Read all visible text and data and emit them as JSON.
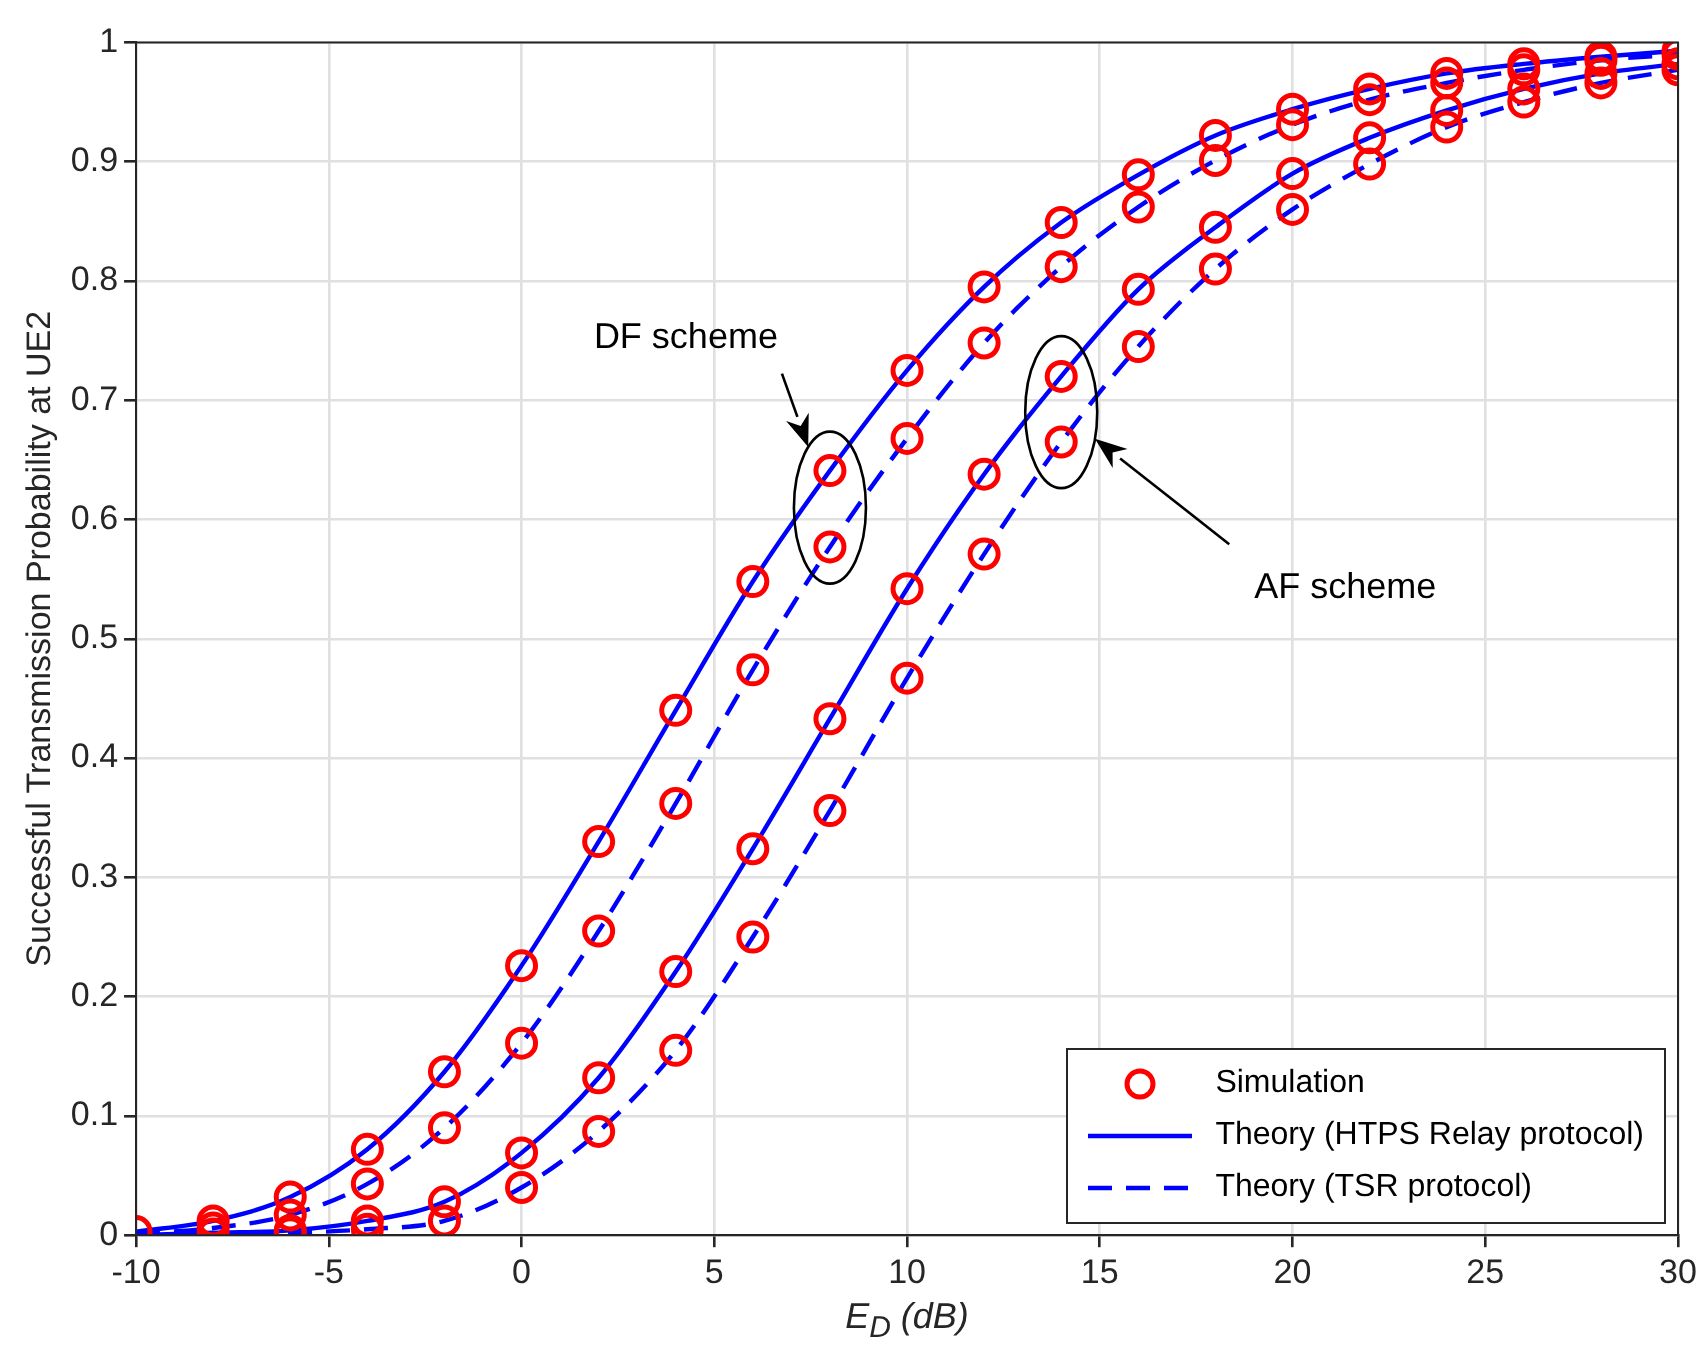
{
  "chart_data": {
    "type": "line",
    "xlabel": "E$_{D}$ (dB)",
    "ylabel": "Successful Transmission Probability at UE2",
    "xlim": [
      -10,
      30
    ],
    "xticks": [
      -10,
      -5,
      0,
      5,
      10,
      15,
      20,
      25,
      30
    ],
    "ylim": [
      0,
      1
    ],
    "yticks": [
      0,
      0.1,
      0.2,
      0.3,
      0.4,
      0.5,
      0.6,
      0.7,
      0.8,
      0.9,
      1
    ],
    "grid": true,
    "legend": "bottom right",
    "annotations": [
      "DF scheme",
      "AF scheme"
    ],
    "series": [
      {
        "name": "Simulation",
        "type": "scatter",
        "color": "#ff0000",
        "marker": "circle",
        "x": [
          -10,
          -8,
          -6,
          -4,
          -2,
          0,
          2,
          4,
          6,
          8,
          10,
          12,
          14,
          16,
          18,
          20,
          22,
          24,
          26,
          28,
          30,
          -8,
          -6,
          -4,
          -2,
          0,
          2,
          4,
          6,
          8,
          10,
          12,
          14,
          16,
          18,
          20,
          22,
          24,
          26,
          28,
          30,
          -6,
          -4,
          -2,
          0,
          2,
          4,
          6,
          8,
          10,
          12,
          14,
          16,
          18,
          20,
          22,
          24,
          26,
          28,
          30,
          -8,
          -6,
          -4,
          -2,
          0,
          2,
          4,
          6,
          8,
          10,
          12,
          14,
          16,
          18,
          20,
          22,
          24,
          26,
          28,
          30
        ],
        "values": [
          0.003,
          0.012,
          0.032,
          0.072,
          0.137,
          0.226,
          0.33,
          0.44,
          0.548,
          0.641,
          0.725,
          0.795,
          0.849,
          0.889,
          0.922,
          0.944,
          0.961,
          0.974,
          0.982,
          0.988,
          0.993,
          0.006,
          0.017,
          0.043,
          0.09,
          0.161,
          0.255,
          0.362,
          0.474,
          0.577,
          0.668,
          0.748,
          0.812,
          0.862,
          0.901,
          0.931,
          0.952,
          0.966,
          0.977,
          0.985,
          0.99,
          0.004,
          0.012,
          0.028,
          0.069,
          0.132,
          0.221,
          0.324,
          0.433,
          0.542,
          0.638,
          0.72,
          0.793,
          0.845,
          0.89,
          0.92,
          0.943,
          0.961,
          0.974,
          0.982,
          0.001,
          0.002,
          0.005,
          0.012,
          0.04,
          0.087,
          0.155,
          0.25,
          0.356,
          0.467,
          0.571,
          0.665,
          0.745,
          0.81,
          0.86,
          0.898,
          0.929,
          0.95,
          0.966,
          0.977
        ]
      },
      {
        "name": "Theory (HTPS Relay protocol)",
        "color": "#0000ff",
        "marker": "none",
        "line_style": "solid",
        "x": [
          -10,
          -8,
          -6,
          -4,
          -2,
          0,
          2,
          4,
          6,
          8,
          10,
          12,
          14,
          16,
          18,
          20,
          22,
          24,
          26,
          28,
          30
        ],
        "values": [
          0.003,
          0.012,
          0.032,
          0.072,
          0.137,
          0.226,
          0.33,
          0.44,
          0.548,
          0.641,
          0.725,
          0.795,
          0.849,
          0.889,
          0.922,
          0.944,
          0.961,
          0.974,
          0.982,
          0.988,
          0.993
        ]
      },
      {
        "name": "Theory (TSR protocol)",
        "color": "#0000ff",
        "marker": "none",
        "line_style": "dashed",
        "x": [
          -10,
          -8,
          -6,
          -4,
          -2,
          0,
          2,
          4,
          6,
          8,
          10,
          12,
          14,
          16,
          18,
          20,
          22,
          24,
          26,
          28,
          30
        ],
        "values": [
          0.001,
          0.006,
          0.017,
          0.043,
          0.09,
          0.161,
          0.255,
          0.362,
          0.474,
          0.577,
          0.668,
          0.748,
          0.812,
          0.862,
          0.901,
          0.931,
          0.952,
          0.966,
          0.977,
          0.985,
          0.99
        ]
      },
      {
        "color": "#0000ff",
        "marker": "none",
        "line_style": "solid",
        "x": [
          -10,
          -8,
          -6,
          -4,
          -2,
          0,
          2,
          4,
          6,
          8,
          10,
          12,
          14,
          16,
          18,
          20,
          22,
          24,
          26,
          28,
          30
        ],
        "values": [
          0,
          0.002,
          0.004,
          0.012,
          0.028,
          0.069,
          0.132,
          0.221,
          0.324,
          0.433,
          0.542,
          0.638,
          0.72,
          0.793,
          0.845,
          0.89,
          0.92,
          0.943,
          0.961,
          0.974,
          0.982
        ]
      },
      {
        "color": "#0000ff",
        "marker": "none",
        "line_style": "dashed",
        "x": [
          -10,
          -8,
          -6,
          -4,
          -2,
          0,
          2,
          4,
          6,
          8,
          10,
          12,
          14,
          16,
          18,
          20,
          22,
          24,
          26,
          28,
          30
        ],
        "values": [
          0,
          0.001,
          0.002,
          0.005,
          0.012,
          0.04,
          0.087,
          0.155,
          0.25,
          0.356,
          0.467,
          0.571,
          0.665,
          0.745,
          0.81,
          0.86,
          0.898,
          0.929,
          0.95,
          0.966,
          0.977
        ]
      }
    ]
  }
}
